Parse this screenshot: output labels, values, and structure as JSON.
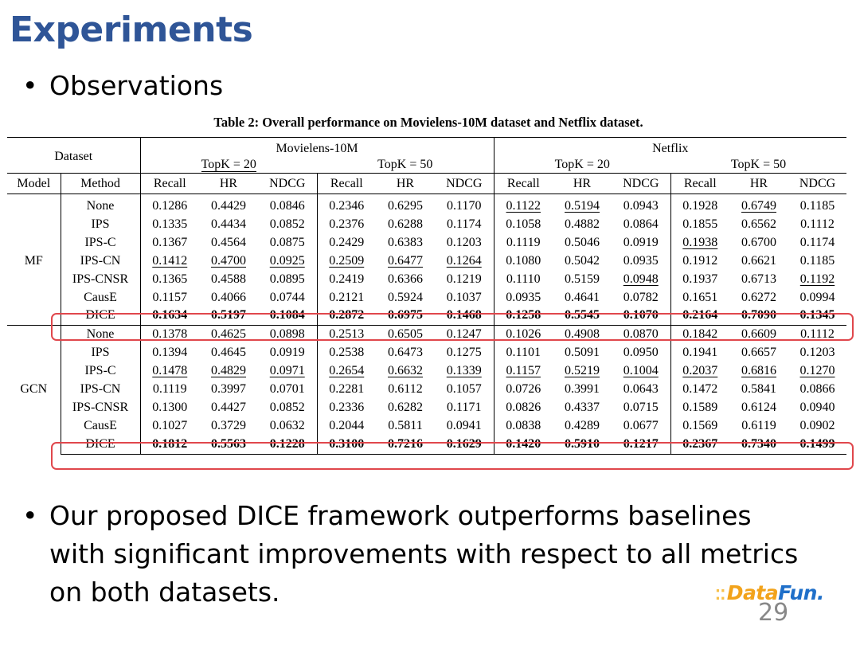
{
  "slide": {
    "title": "Experiments",
    "bullets": [
      "Observations",
      "Our proposed DICE framework outperforms baselines with significant improvements with respect to all metrics on both datasets."
    ],
    "bullet_symbol": "•",
    "page_number": "29",
    "logo": {
      "part1": "Data",
      "part2": "Fun.",
      "mark": "⁚⁚",
      "colors": {
        "data": "#f2a31b",
        "fun": "#1f6fc9"
      }
    },
    "colors": {
      "title": "#2f5597",
      "highlight": "#e0474c"
    }
  },
  "table": {
    "caption": "Table 2: Overall performance on Movielens-10M dataset and Netflix dataset.",
    "header": {
      "dataset_label": "Dataset",
      "datasets": [
        "Movielens-10M",
        "Netflix"
      ],
      "topk": [
        "TopK = 20",
        "TopK = 50",
        "TopK = 20",
        "TopK = 50"
      ],
      "model_label": "Model",
      "method_label": "Method",
      "metrics": [
        "Recall",
        "HR",
        "NDCG",
        "Recall",
        "HR",
        "NDCG",
        "Recall",
        "HR",
        "NDCG",
        "Recall",
        "HR",
        "NDCG"
      ]
    },
    "groups": [
      {
        "model": "MF",
        "rows": [
          {
            "method": "None",
            "values": [
              "0.1286",
              "0.4429",
              "0.0846",
              "0.2346",
              "0.6295",
              "0.1170",
              "0.1122",
              "0.5194",
              "0.0943",
              "0.1928",
              "0.6749",
              "0.1185"
            ],
            "underlined": [
              6,
              7,
              10
            ]
          },
          {
            "method": "IPS",
            "values": [
              "0.1335",
              "0.4434",
              "0.0852",
              "0.2376",
              "0.6288",
              "0.1174",
              "0.1058",
              "0.4882",
              "0.0864",
              "0.1855",
              "0.6562",
              "0.1112"
            ],
            "underlined": []
          },
          {
            "method": "IPS-C",
            "values": [
              "0.1367",
              "0.4564",
              "0.0875",
              "0.2429",
              "0.6383",
              "0.1203",
              "0.1119",
              "0.5046",
              "0.0919",
              "0.1938",
              "0.6700",
              "0.1174"
            ],
            "underlined": [
              9
            ]
          },
          {
            "method": "IPS-CN",
            "values": [
              "0.1412",
              "0.4700",
              "0.0925",
              "0.2509",
              "0.6477",
              "0.1264",
              "0.1080",
              "0.5042",
              "0.0935",
              "0.1912",
              "0.6621",
              "0.1185"
            ],
            "underlined": [
              0,
              1,
              2,
              3,
              4,
              5
            ]
          },
          {
            "method": "IPS-CNSR",
            "values": [
              "0.1365",
              "0.4588",
              "0.0895",
              "0.2419",
              "0.6366",
              "0.1219",
              "0.1110",
              "0.5159",
              "0.0948",
              "0.1937",
              "0.6713",
              "0.1192"
            ],
            "underlined": [
              8,
              11
            ]
          },
          {
            "method": "CausE",
            "values": [
              "0.1157",
              "0.4066",
              "0.0744",
              "0.2121",
              "0.5924",
              "0.1037",
              "0.0935",
              "0.4641",
              "0.0782",
              "0.1651",
              "0.6272",
              "0.0994"
            ],
            "underlined": []
          },
          {
            "method": "DICE",
            "values": [
              "0.1634",
              "0.5197",
              "0.1084",
              "0.2872",
              "0.6975",
              "0.1468",
              "0.1258",
              "0.5545",
              "0.1070",
              "0.2164",
              "0.7090",
              "0.1345"
            ],
            "underlined": [],
            "bold": true
          }
        ]
      },
      {
        "model": "GCN",
        "rows": [
          {
            "method": "None",
            "values": [
              "0.1378",
              "0.4625",
              "0.0898",
              "0.2513",
              "0.6505",
              "0.1247",
              "0.1026",
              "0.4908",
              "0.0870",
              "0.1842",
              "0.6609",
              "0.1112"
            ],
            "underlined": []
          },
          {
            "method": "IPS",
            "values": [
              "0.1394",
              "0.4645",
              "0.0919",
              "0.2538",
              "0.6473",
              "0.1275",
              "0.1101",
              "0.5091",
              "0.0950",
              "0.1941",
              "0.6657",
              "0.1203"
            ],
            "underlined": []
          },
          {
            "method": "IPS-C",
            "values": [
              "0.1478",
              "0.4829",
              "0.0971",
              "0.2654",
              "0.6632",
              "0.1339",
              "0.1157",
              "0.5219",
              "0.1004",
              "0.2037",
              "0.6816",
              "0.1270"
            ],
            "underlined": [
              0,
              1,
              2,
              3,
              4,
              5,
              6,
              7,
              8,
              9,
              10,
              11
            ]
          },
          {
            "method": "IPS-CN",
            "values": [
              "0.1119",
              "0.3997",
              "0.0701",
              "0.2281",
              "0.6112",
              "0.1057",
              "0.0726",
              "0.3991",
              "0.0643",
              "0.1472",
              "0.5841",
              "0.0866"
            ],
            "underlined": []
          },
          {
            "method": "IPS-CNSR",
            "values": [
              "0.1300",
              "0.4427",
              "0.0852",
              "0.2336",
              "0.6282",
              "0.1171",
              "0.0826",
              "0.4337",
              "0.0715",
              "0.1589",
              "0.6124",
              "0.0940"
            ],
            "underlined": []
          },
          {
            "method": "CausE",
            "values": [
              "0.1027",
              "0.3729",
              "0.0632",
              "0.2044",
              "0.5811",
              "0.0941",
              "0.0838",
              "0.4289",
              "0.0677",
              "0.1569",
              "0.6119",
              "0.0902"
            ],
            "underlined": []
          },
          {
            "method": "DICE",
            "values": [
              "0.1812",
              "0.5563",
              "0.1228",
              "0.3100",
              "0.7216",
              "0.1629",
              "0.1420",
              "0.5910",
              "0.1217",
              "0.2367",
              "0.7340",
              "0.1499"
            ],
            "underlined": [],
            "bold": true
          }
        ]
      }
    ]
  }
}
